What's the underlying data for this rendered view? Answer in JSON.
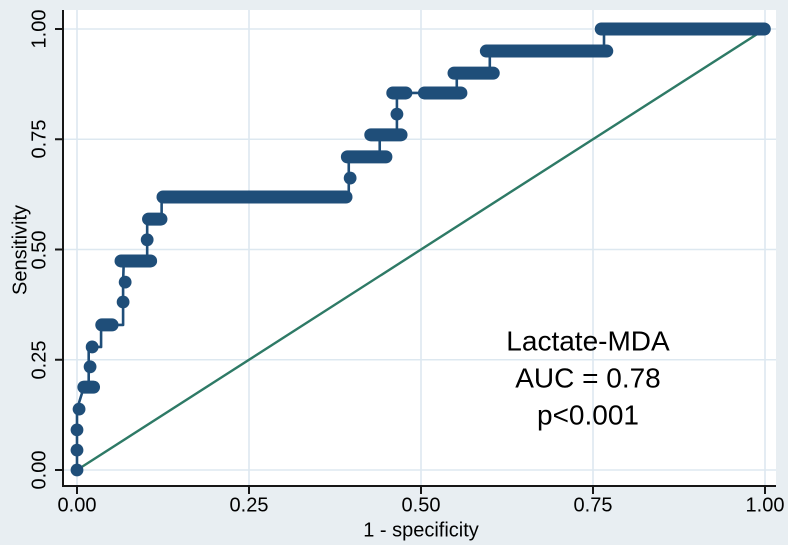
{
  "figure": {
    "background": "#e8eef2",
    "plot_background": "#ffffff",
    "gridline_color": "#dde8f0",
    "axis_color": "#161616",
    "curve_color": "#1f4e79",
    "reference_color": "#2e7a66",
    "text_color": "#000000"
  },
  "chart_data": {
    "type": "line",
    "subtype": "roc-step-curve",
    "title": "",
    "xlabel": "1 - specificity",
    "ylabel": "Sensitivity",
    "xlim": [
      0,
      1
    ],
    "ylim": [
      0,
      1
    ],
    "grid": "both",
    "x_ticks": [
      "0.00",
      "0.25",
      "0.50",
      "0.75",
      "1.00"
    ],
    "y_ticks": [
      "0.00",
      "0.25",
      "0.50",
      "0.75",
      "1.00"
    ],
    "tick_values": [
      0,
      0.25,
      0.5,
      0.75,
      1
    ],
    "legend_position": "none",
    "annotation": {
      "line1": "Lactate-MDA",
      "line2": "AUC = 0.78",
      "line3": "p<0.001"
    },
    "series_label": "Lactate-MDA",
    "auc": 0.78,
    "p_value": "p<0.001",
    "series": [
      {
        "name": "ROC curve (Lactate-MDA)",
        "type": "step",
        "points": [
          [
            0.0,
            0.0
          ],
          [
            0.0,
            0.138
          ],
          [
            0.01,
            0.188
          ],
          [
            0.017,
            0.188
          ],
          [
            0.017,
            0.279
          ],
          [
            0.035,
            0.279
          ],
          [
            0.035,
            0.329
          ],
          [
            0.067,
            0.329
          ],
          [
            0.067,
            0.426
          ],
          [
            0.068,
            0.474
          ],
          [
            0.102,
            0.474
          ],
          [
            0.102,
            0.569
          ],
          [
            0.123,
            0.569
          ],
          [
            0.123,
            0.619
          ],
          [
            0.391,
            0.619
          ],
          [
            0.395,
            0.619
          ],
          [
            0.395,
            0.71
          ],
          [
            0.44,
            0.71
          ],
          [
            0.44,
            0.76
          ],
          [
            0.465,
            0.76
          ],
          [
            0.465,
            0.855
          ],
          [
            0.552,
            0.855
          ],
          [
            0.552,
            0.9
          ],
          [
            0.6,
            0.9
          ],
          [
            0.6,
            0.95
          ],
          [
            0.766,
            0.95
          ],
          [
            0.766,
            1.0
          ],
          [
            1.0,
            1.0
          ]
        ]
      },
      {
        "name": "Reference (chance) line",
        "type": "line",
        "points": [
          [
            0,
            0
          ],
          [
            1,
            1
          ]
        ]
      }
    ],
    "marker_runs": [
      [
        0.188,
        0.01,
        0.024
      ],
      [
        0.329,
        0.036,
        0.051
      ],
      [
        0.474,
        0.064,
        0.107
      ],
      [
        0.569,
        0.104,
        0.122
      ],
      [
        0.619,
        0.125,
        0.391
      ],
      [
        0.71,
        0.393,
        0.449
      ],
      [
        0.76,
        0.427,
        0.471
      ],
      [
        0.855,
        0.459,
        0.478
      ],
      [
        0.855,
        0.505,
        0.558
      ],
      [
        0.9,
        0.548,
        0.605
      ],
      [
        0.95,
        0.595,
        0.77
      ],
      [
        1.0,
        0.762,
        0.999
      ]
    ],
    "markers": [
      [
        0.0,
        0.0
      ],
      [
        0.0,
        0.045
      ],
      [
        0.0,
        0.091
      ],
      [
        0.003,
        0.138
      ],
      [
        0.019,
        0.234
      ],
      [
        0.022,
        0.279
      ],
      [
        0.067,
        0.381
      ],
      [
        0.07,
        0.426
      ],
      [
        0.102,
        0.522
      ],
      [
        0.397,
        0.662
      ],
      [
        0.465,
        0.807
      ]
    ]
  }
}
